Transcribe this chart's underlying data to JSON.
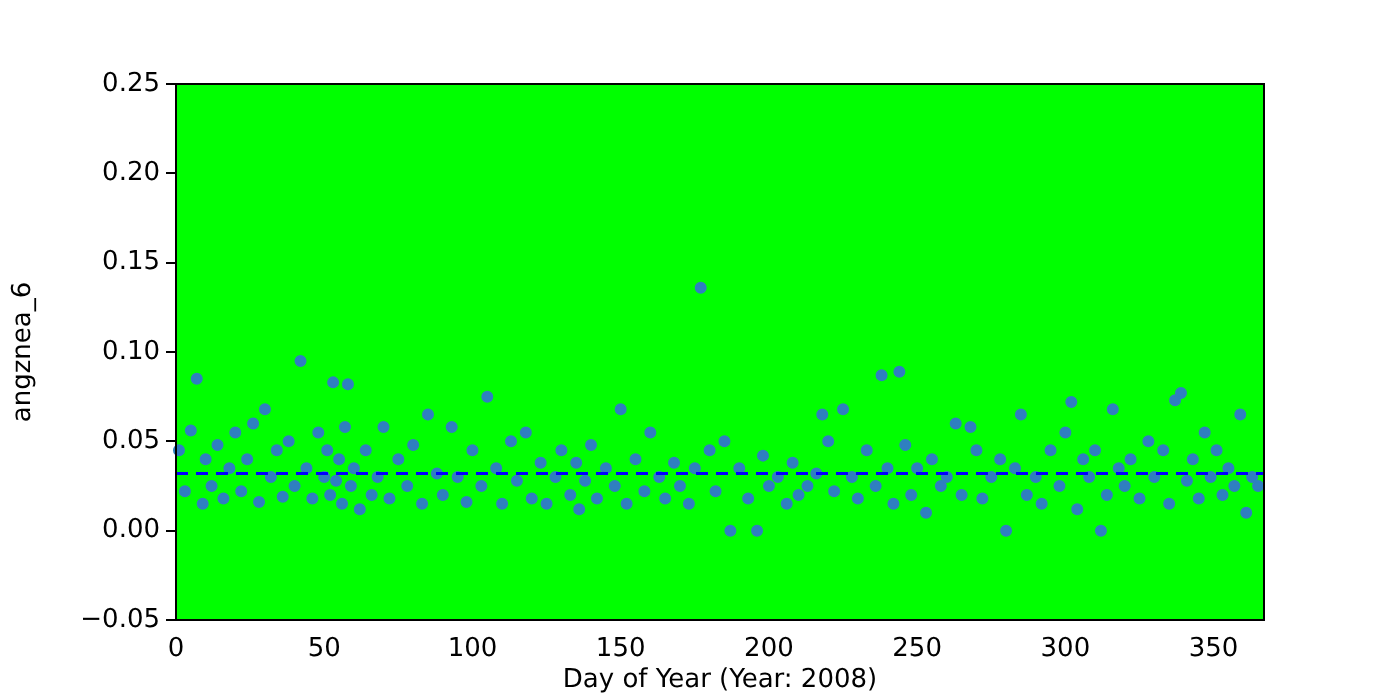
{
  "chart_data": {
    "type": "scatter",
    "xlabel": "Day of Year (Year: 2008)",
    "ylabel": "angznea_6",
    "xlim": [
      0,
      367
    ],
    "xticks": [
      0,
      50,
      100,
      150,
      200,
      250,
      300,
      350
    ],
    "ylim": [
      -0.05,
      0.25
    ],
    "yticks": [
      {
        "value": -0.05,
        "label": "−0.05"
      },
      {
        "value": 0,
        "label": "0.00"
      },
      {
        "value": 0.05,
        "label": "0.05"
      },
      {
        "value": 0.1,
        "label": "0.10"
      },
      {
        "value": 0.15,
        "label": "0.15"
      },
      {
        "value": 0.2,
        "label": "0.20"
      },
      {
        "value": 0.25,
        "label": "0.25"
      }
    ],
    "grid": false,
    "legend": false,
    "marker": "circle",
    "ref_lines": [
      {
        "axis": "y",
        "value": 0.032,
        "color": "#0000ff",
        "line_style": "dashed"
      }
    ],
    "series": [
      {
        "color": "#2f7fc0",
        "x": [
          1,
          3,
          5,
          7,
          9,
          10,
          12,
          14,
          16,
          18,
          20,
          22,
          24,
          26,
          28,
          30,
          32,
          34,
          36,
          38,
          40,
          42,
          44,
          46,
          48,
          50,
          51,
          52,
          53,
          54,
          55,
          56,
          57,
          58,
          59,
          60,
          62,
          64,
          66,
          68,
          70,
          72,
          75,
          78,
          80,
          83,
          85,
          88,
          90,
          93,
          95,
          98,
          100,
          103,
          105,
          108,
          110,
          113,
          115,
          118,
          120,
          123,
          125,
          128,
          130,
          133,
          135,
          136,
          138,
          140,
          142,
          145,
          148,
          150,
          152,
          155,
          158,
          160,
          163,
          165,
          168,
          170,
          173,
          175,
          177,
          180,
          182,
          185,
          187,
          190,
          193,
          196,
          198,
          200,
          203,
          206,
          208,
          210,
          213,
          216,
          218,
          220,
          222,
          225,
          228,
          230,
          233,
          236,
          238,
          240,
          242,
          244,
          246,
          248,
          250,
          253,
          255,
          258,
          260,
          263,
          265,
          268,
          270,
          272,
          275,
          278,
          280,
          283,
          285,
          287,
          290,
          292,
          295,
          298,
          300,
          302,
          304,
          306,
          308,
          310,
          312,
          314,
          316,
          318,
          320,
          322,
          325,
          328,
          330,
          333,
          335,
          337,
          339,
          341,
          343,
          345,
          347,
          349,
          351,
          353,
          355,
          357,
          359,
          361,
          363,
          365
        ],
        "values": [
          0.045,
          0.022,
          0.056,
          0.085,
          0.015,
          0.04,
          0.025,
          0.048,
          0.018,
          0.035,
          0.055,
          0.022,
          0.04,
          0.06,
          0.016,
          0.068,
          0.03,
          0.045,
          0.019,
          0.05,
          0.025,
          0.095,
          0.035,
          0.018,
          0.055,
          0.03,
          0.045,
          0.02,
          0.083,
          0.028,
          0.04,
          0.015,
          0.058,
          0.082,
          0.025,
          0.035,
          0.012,
          0.045,
          0.02,
          0.03,
          0.058,
          0.018,
          0.04,
          0.025,
          0.048,
          0.015,
          0.065,
          0.032,
          0.02,
          0.058,
          0.03,
          0.016,
          0.045,
          0.025,
          0.075,
          0.035,
          0.015,
          0.05,
          0.028,
          0.055,
          0.018,
          0.038,
          0.015,
          0.03,
          0.045,
          0.02,
          0.038,
          0.012,
          0.028,
          0.048,
          0.018,
          0.035,
          0.025,
          0.068,
          0.015,
          0.04,
          0.022,
          0.055,
          0.03,
          0.018,
          0.038,
          0.025,
          0.015,
          0.035,
          0.136,
          0.045,
          0.022,
          0.05,
          0.0,
          0.035,
          0.018,
          0.0,
          0.042,
          0.025,
          0.03,
          0.015,
          0.038,
          0.02,
          0.025,
          0.032,
          0.065,
          0.05,
          0.022,
          0.068,
          0.03,
          0.018,
          0.045,
          0.025,
          0.087,
          0.035,
          0.015,
          0.089,
          0.048,
          0.02,
          0.035,
          0.01,
          0.04,
          0.025,
          0.03,
          0.06,
          0.02,
          0.058,
          0.045,
          0.018,
          0.03,
          0.04,
          0.0,
          0.035,
          0.065,
          0.02,
          0.03,
          0.015,
          0.045,
          0.025,
          0.055,
          0.072,
          0.012,
          0.04,
          0.03,
          0.045,
          0.0,
          0.02,
          0.068,
          0.035,
          0.025,
          0.04,
          0.018,
          0.05,
          0.03,
          0.045,
          0.015,
          0.073,
          0.077,
          0.028,
          0.04,
          0.018,
          0.055,
          0.03,
          0.045,
          0.02,
          0.035,
          0.025,
          0.065,
          0.01,
          0.03,
          0.025
        ]
      }
    ]
  }
}
